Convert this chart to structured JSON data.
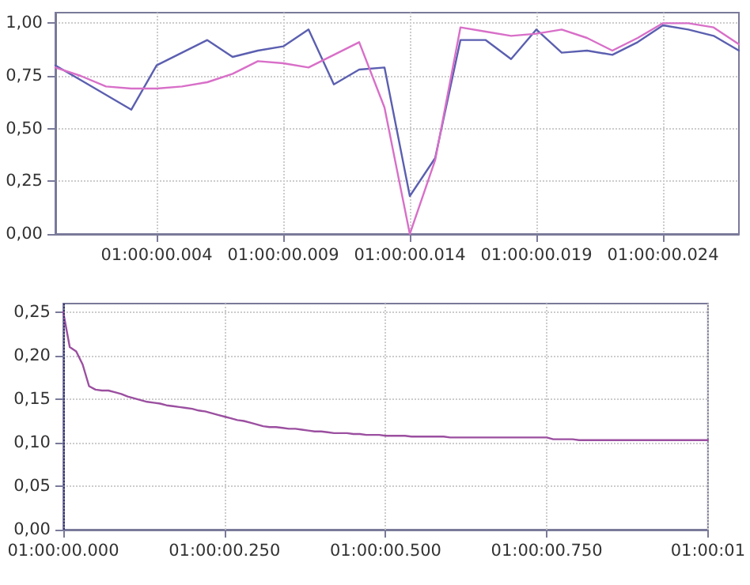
{
  "chart_data": [
    {
      "type": "line",
      "categories": [
        null,
        null,
        null,
        null,
        "01:00:00.004",
        null,
        null,
        null,
        null,
        "01:00:00.009",
        null,
        null,
        null,
        null,
        "01:00:00.014",
        null,
        null,
        null,
        null,
        "01:00:00.019",
        null,
        null,
        null,
        null,
        "01:00:00.024",
        null,
        null,
        null
      ],
      "series": [
        {
          "color": "#5b5fb0",
          "values": [
            0.8,
            0.73,
            0.66,
            0.59,
            0.8,
            0.86,
            0.92,
            0.84,
            0.87,
            0.89,
            0.97,
            0.71,
            0.78,
            0.79,
            0.18,
            0.36,
            0.92,
            0.92,
            0.83,
            0.97,
            0.86,
            0.87,
            0.85,
            0.91,
            0.99,
            0.97,
            0.94,
            0.87
          ]
        },
        {
          "color": "#d86fc8",
          "values": [
            0.79,
            0.75,
            0.7,
            0.69,
            0.69,
            0.7,
            0.72,
            0.76,
            0.82,
            0.81,
            0.79,
            0.85,
            0.91,
            0.6,
            0.0,
            0.35,
            0.98,
            0.96,
            0.94,
            0.95,
            0.97,
            0.93,
            0.87,
            0.93,
            1.0,
            1.0,
            0.98,
            0.9
          ]
        }
      ],
      "ylim": [
        0,
        1.05
      ],
      "yticks": [
        {
          "value": 0,
          "label": "0,00"
        },
        {
          "value": 0.25,
          "label": "0,25"
        },
        {
          "value": 0.5,
          "label": "0,50"
        },
        {
          "value": 0.75,
          "label": "0,75"
        },
        {
          "value": 1,
          "label": "1,00"
        }
      ],
      "grid": true,
      "marker": "none",
      "line_style": "solid"
    },
    {
      "type": "line",
      "categories": [
        "01:00:00.000",
        null,
        null,
        null,
        null,
        null,
        null,
        null,
        null,
        null,
        null,
        null,
        null,
        null,
        null,
        null,
        null,
        null,
        null,
        null,
        null,
        null,
        null,
        null,
        null,
        "01:00:00.250",
        null,
        null,
        null,
        null,
        null,
        null,
        null,
        null,
        null,
        null,
        null,
        null,
        null,
        null,
        null,
        null,
        null,
        null,
        null,
        null,
        null,
        null,
        null,
        null,
        "01:00:00.500",
        null,
        null,
        null,
        null,
        null,
        null,
        null,
        null,
        null,
        null,
        null,
        null,
        null,
        null,
        null,
        null,
        null,
        null,
        null,
        null,
        null,
        null,
        null,
        null,
        "01:00:00.750",
        null,
        null,
        null,
        null,
        null,
        null,
        null,
        null,
        null,
        null,
        null,
        null,
        null,
        null,
        null,
        null,
        null,
        null,
        null,
        null,
        null,
        null,
        null,
        null,
        "01:00:01"
      ],
      "series": [
        {
          "color": "#9b4fa0",
          "values": [
            0.25,
            0.21,
            0.205,
            0.19,
            0.165,
            0.161,
            0.16,
            0.16,
            0.158,
            0.156,
            0.153,
            0.151,
            0.149,
            0.147,
            0.146,
            0.145,
            0.143,
            0.142,
            0.141,
            0.14,
            0.139,
            0.137,
            0.136,
            0.134,
            0.132,
            0.13,
            0.128,
            0.126,
            0.125,
            0.123,
            0.121,
            0.119,
            0.118,
            0.118,
            0.117,
            0.116,
            0.116,
            0.115,
            0.114,
            0.113,
            0.113,
            0.112,
            0.111,
            0.111,
            0.111,
            0.11,
            0.11,
            0.109,
            0.109,
            0.109,
            0.108,
            0.108,
            0.108,
            0.108,
            0.107,
            0.107,
            0.107,
            0.107,
            0.107,
            0.107,
            0.106,
            0.106,
            0.106,
            0.106,
            0.106,
            0.106,
            0.106,
            0.106,
            0.106,
            0.106,
            0.106,
            0.106,
            0.106,
            0.106,
            0.106,
            0.106,
            0.104,
            0.104,
            0.104,
            0.104,
            0.103,
            0.103,
            0.103,
            0.103,
            0.103,
            0.103,
            0.103,
            0.103,
            0.103,
            0.103,
            0.103,
            0.103,
            0.103,
            0.103,
            0.103,
            0.103,
            0.103,
            0.103,
            0.103,
            0.103,
            0.103
          ]
        }
      ],
      "ylim": [
        0,
        0.26
      ],
      "yticks": [
        {
          "value": 0,
          "label": "0,00"
        },
        {
          "value": 0.05,
          "label": "0,05"
        },
        {
          "value": 0.1,
          "label": "0,10"
        },
        {
          "value": 0.15,
          "label": "0,15"
        },
        {
          "value": 0.2,
          "label": "0,20"
        },
        {
          "value": 0.25,
          "label": "0,25"
        }
      ],
      "ref_lines": [
        {
          "axis": "x",
          "value": "01:00:00.000",
          "color": "#33337a",
          "line_style": "dotted"
        }
      ],
      "grid": true,
      "marker": "none",
      "line_style": "solid"
    }
  ]
}
